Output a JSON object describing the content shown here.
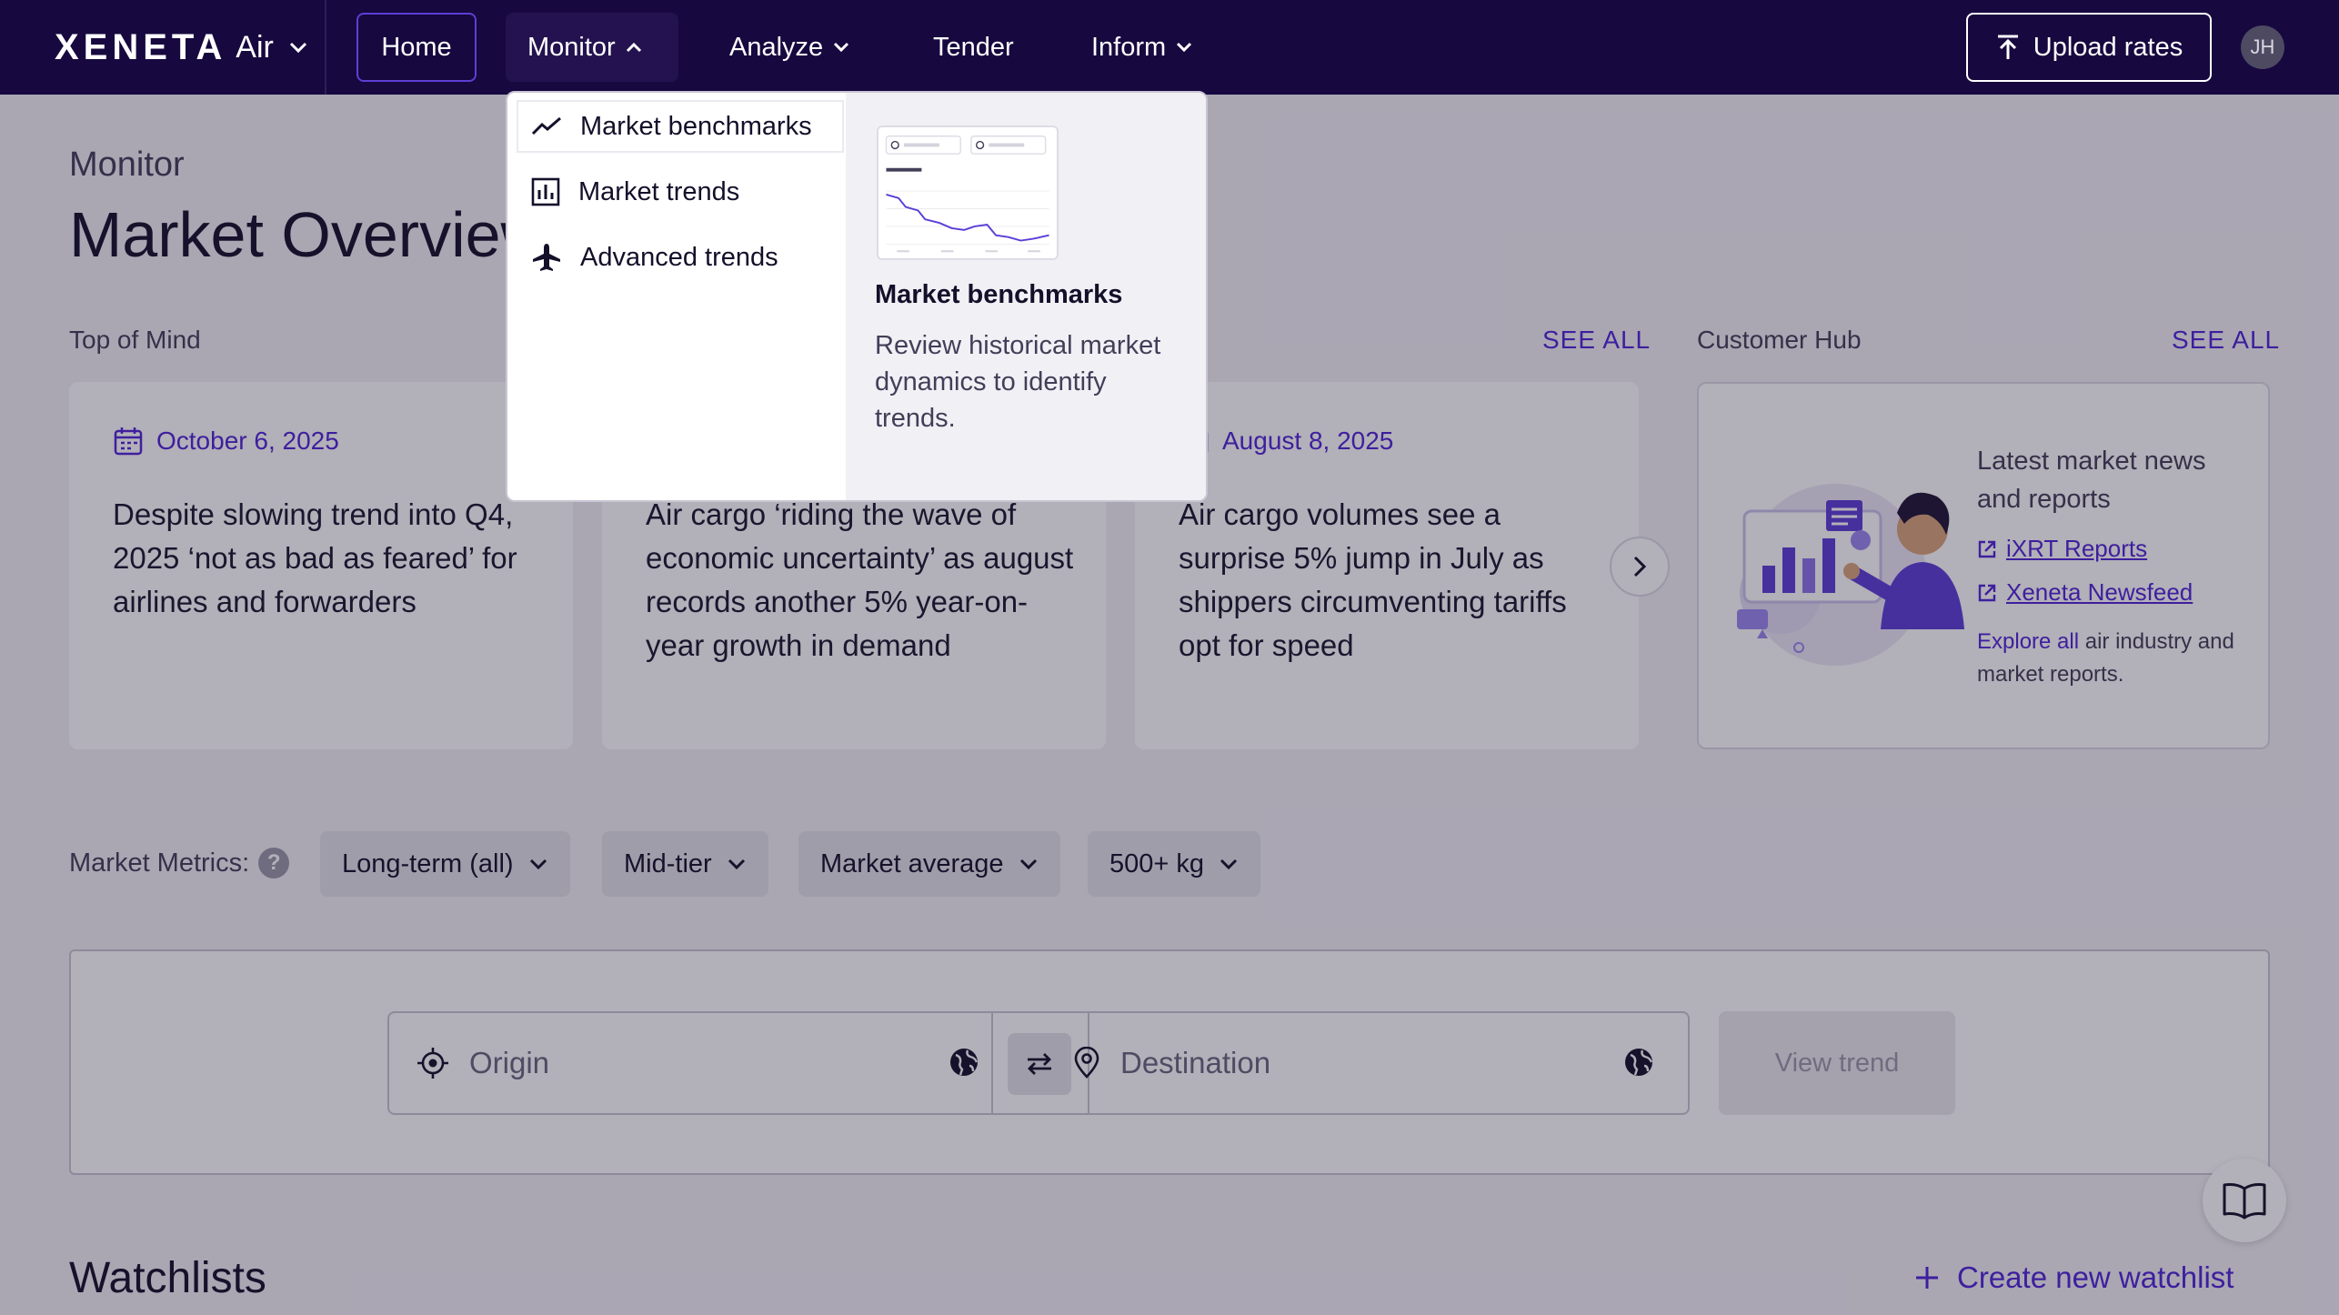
{
  "nav": {
    "logo": "XENETA",
    "logo_sub": "Air",
    "items": [
      {
        "label": "Home"
      },
      {
        "label": "Monitor"
      },
      {
        "label": "Analyze"
      },
      {
        "label": "Tender"
      },
      {
        "label": "Inform"
      }
    ],
    "upload_label": "Upload rates",
    "avatar_initials": "JH"
  },
  "page": {
    "breadcrumb": "Monitor",
    "title": "Market Overview"
  },
  "top_of_mind": {
    "label": "Top of Mind",
    "see_all": "SEE ALL",
    "cards": [
      {
        "date": "October 6, 2025",
        "text": "Despite slowing trend into Q4, 2025 ‘not as bad as feared’ for airlines and forwarders"
      },
      {
        "date": "",
        "text": "Air cargo ‘riding the wave of economic uncertainty’ as august records another 5% year-on-year growth in demand"
      },
      {
        "date": "August 8, 2025",
        "text": "Air cargo volumes see a surprise 5% jump in July as shippers circumventing tariffs opt for speed"
      }
    ]
  },
  "customer_hub": {
    "label": "Customer Hub",
    "see_all": "SEE ALL",
    "title": "Latest market news and reports",
    "links": [
      "iXRT Reports",
      "Xeneta Newsfeed"
    ],
    "explore_link": "Explore all",
    "explore_rest": " air industry and market reports."
  },
  "metrics": {
    "label": "Market Metrics:",
    "help": "?",
    "filters": [
      "Long-term (all)",
      "Mid-tier",
      "Market average",
      "500+ kg"
    ]
  },
  "route": {
    "origin_placeholder": "Origin",
    "destination_placeholder": "Destination",
    "view_trend": "View trend"
  },
  "watchlists": {
    "title": "Watchlists",
    "create_label": "Create new watchlist"
  },
  "monitor_menu": {
    "items": [
      {
        "label": "Market benchmarks",
        "icon": "trend-line-icon",
        "active": true
      },
      {
        "label": "Market trends",
        "icon": "bar-chart-icon",
        "active": false
      },
      {
        "label": "Advanced trends",
        "icon": "airplane-icon",
        "active": false
      }
    ],
    "preview": {
      "title": "Market benchmarks",
      "description": "Review historical market dynamics to identify trends."
    }
  },
  "colors": {
    "nav_bg": "#17083f",
    "accent": "#5024d8",
    "page_bg": "#f3f1f7"
  }
}
